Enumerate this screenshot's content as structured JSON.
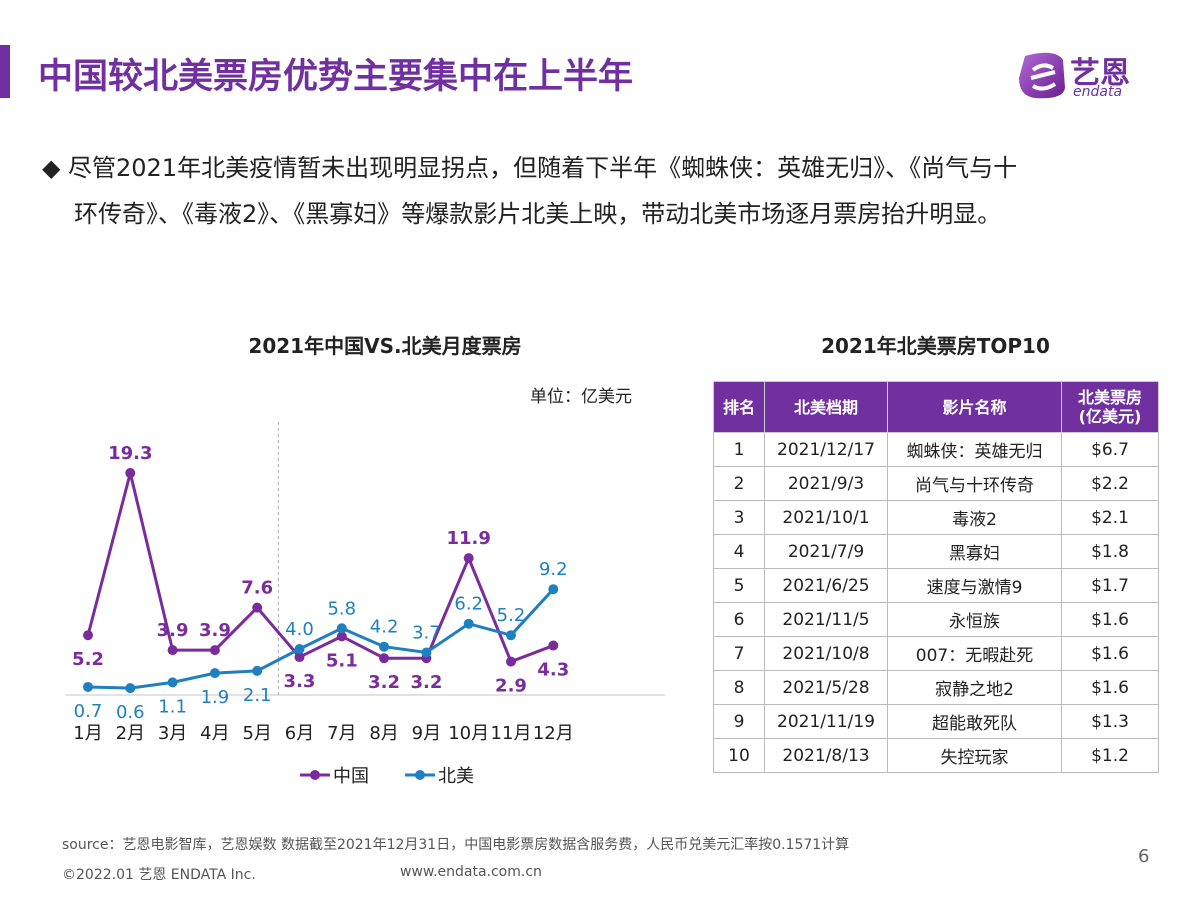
{
  "header": {
    "title": "中国较北美票房优势主要集中在上半年",
    "logo_text_cn": "艺恩",
    "logo_text_en": "endata",
    "brand_color": "#7030a0"
  },
  "bullet": {
    "icon": "diamond-bullet-icon",
    "line1": "尽管2021年北美疫情暂未出现明显拐点，但随着下半年《蜘蛛侠：英雄无归》、《尚气与十",
    "line2": "环传奇》、《毒液2》、《黑寡妇》等爆款影片北美上映，带动北美市场逐月票房抬升明显。"
  },
  "chart_data": {
    "type": "line",
    "title": "2021年中国VS.北美月度票房",
    "unit": "单位：亿美元",
    "categories": [
      "1月",
      "2月",
      "3月",
      "4月",
      "5月",
      "6月",
      "7月",
      "8月",
      "9月",
      "10月",
      "11月",
      "12月"
    ],
    "series": [
      {
        "name": "中国",
        "color": "#7b2c9c",
        "values": [
          5.2,
          19.3,
          3.9,
          3.9,
          7.6,
          3.3,
          5.1,
          3.2,
          3.2,
          11.9,
          2.9,
          4.3
        ]
      },
      {
        "name": "北美",
        "color": "#1f7fc0",
        "values": [
          0.7,
          0.6,
          1.1,
          1.9,
          2.1,
          4.0,
          5.8,
          4.2,
          3.7,
          6.2,
          5.2,
          9.2
        ]
      }
    ],
    "legend": "bottom",
    "grid": false,
    "divider_after": "5月"
  },
  "table": {
    "title": "2021年北美票房TOP10",
    "headers": [
      "排名",
      "北美档期",
      "影片名称",
      "北美票房\n(亿美元)"
    ],
    "header_line1": "北美票房",
    "header_line2": "(亿美元)",
    "rows": [
      [
        "1",
        "2021/12/17",
        "蜘蛛侠：英雄无归",
        "$6.7"
      ],
      [
        "2",
        "2021/9/3",
        "尚气与十环传奇",
        "$2.2"
      ],
      [
        "3",
        "2021/10/1",
        "毒液2",
        "$2.1"
      ],
      [
        "4",
        "2021/7/9",
        "黑寡妇",
        "$1.8"
      ],
      [
        "5",
        "2021/6/25",
        "速度与激情9",
        "$1.7"
      ],
      [
        "6",
        "2021/11/5",
        "永恒族",
        "$1.6"
      ],
      [
        "7",
        "2021/10/8",
        "007：无暇赴死",
        "$1.6"
      ],
      [
        "8",
        "2021/5/28",
        "寂静之地2",
        "$1.6"
      ],
      [
        "9",
        "2021/11/19",
        "超能敢死队",
        "$1.3"
      ],
      [
        "10",
        "2021/8/13",
        "失控玩家",
        "$1.2"
      ]
    ]
  },
  "footer": {
    "source": "source：艺恩电影智库，艺恩娱数    数据截至2021年12月31日，中国电影票房数据含服务费，人民币兑美元汇率按0.1571计算",
    "copyright": "©2022.01 艺恩 ENDATA Inc.",
    "website": "www.endata.com.cn",
    "page_number": "6"
  }
}
